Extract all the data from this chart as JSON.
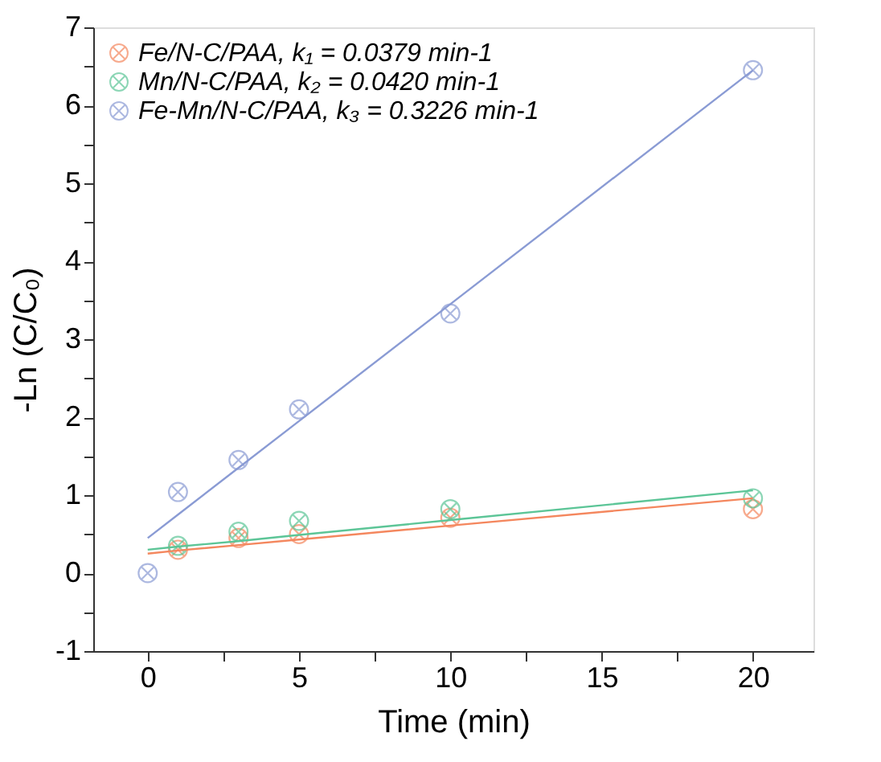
{
  "chart_data": {
    "type": "scatter",
    "xlabel": "Time (min)",
    "ylabel": "-Ln (C/C₀)",
    "x": [
      0,
      1,
      3,
      5,
      10,
      20
    ],
    "series": [
      {
        "name": "Fe/N-C/PAA, k₁ = 0.0379 min-1",
        "color": "#f4875e",
        "values": [
          null,
          0.3,
          0.45,
          0.5,
          0.71,
          0.82
        ]
      },
      {
        "name": "Mn/N-C/PAA, k₂ = 0.0420 min-1",
        "color": "#5cc597",
        "values": [
          null,
          0.35,
          0.53,
          0.67,
          0.82,
          0.96
        ]
      },
      {
        "name": "Fe-Mn/N-C/PAA, k₃ = 0.3226 min-1",
        "color": "#8a9bd4",
        "values": [
          0,
          1.04,
          1.45,
          2.1,
          3.33,
          6.45
        ]
      },
      {
        "type": "line",
        "marker": "none",
        "color": "#f4875e",
        "values": [
          0.25,
          0.29,
          0.36,
          0.43,
          0.61,
          0.96
        ]
      },
      {
        "type": "line",
        "marker": "none",
        "color": "#5cc597",
        "values": [
          0.3,
          0.34,
          0.41,
          0.49,
          0.68,
          1.06
        ]
      },
      {
        "type": "line",
        "marker": "none",
        "color": "#8a9bd4",
        "values": [
          0.45,
          0.75,
          1.35,
          1.95,
          3.45,
          6.45
        ]
      }
    ],
    "xlim": [
      -1.8,
      22
    ],
    "ylim": [
      -1,
      7
    ],
    "xticks": [
      0,
      {
        "value": 2.5,
        "label": null
      },
      5,
      {
        "value": 7.5,
        "label": null
      },
      10,
      {
        "value": 12.5,
        "label": null
      },
      15,
      {
        "value": 17.5,
        "label": null
      },
      20
    ],
    "yticks": [
      -1,
      {
        "value": -0.5,
        "label": null
      },
      0,
      {
        "value": 0.5,
        "label": null
      },
      1,
      {
        "value": 1.5,
        "label": null
      },
      2,
      {
        "value": 2.5,
        "label": null
      },
      3,
      {
        "value": 3.5,
        "label": null
      },
      4,
      {
        "value": 4.5,
        "label": null
      },
      5,
      {
        "value": 5.5,
        "label": null
      },
      6,
      {
        "value": 6.5,
        "label": null
      },
      7
    ],
    "marker": "cross",
    "line_style": "solid",
    "grid": false,
    "legend": "top left"
  }
}
